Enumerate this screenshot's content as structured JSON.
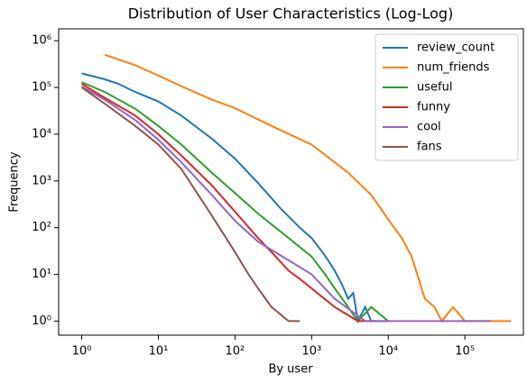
{
  "chart_data": {
    "type": "line",
    "title": "Distribution of User Characteristics (Log-Log)",
    "x_label": "By user",
    "y_label": "Frequency",
    "xscale": "log",
    "yscale": "log",
    "xlim": [
      0.5,
      580000
    ],
    "ylim": [
      0.5,
      1800000
    ],
    "xticks": [
      {
        "value": 1,
        "label": "10⁰"
      },
      {
        "value": 10,
        "label": "10¹"
      },
      {
        "value": 100,
        "label": "10²"
      },
      {
        "value": 1000,
        "label": "10³"
      },
      {
        "value": 10000,
        "label": "10⁴"
      },
      {
        "value": 100000,
        "label": "10⁵"
      }
    ],
    "yticks": [
      {
        "value": 1,
        "label": "10⁰"
      },
      {
        "value": 10,
        "label": "10¹"
      },
      {
        "value": 100,
        "label": "10²"
      },
      {
        "value": 1000,
        "label": "10³"
      },
      {
        "value": 10000,
        "label": "10⁴"
      },
      {
        "value": 100000,
        "label": "10⁵"
      },
      {
        "value": 1000000,
        "label": "10⁶"
      }
    ],
    "legend": "upper right",
    "series": [
      {
        "name": "review_count",
        "color": "#1f77b4",
        "x": [
          1,
          2,
          3,
          5,
          10,
          20,
          50,
          100,
          200,
          400,
          700,
          1000,
          1500,
          2000,
          2500,
          3000,
          3500,
          4000,
          5000,
          6000,
          8000,
          10000
        ],
        "values": [
          200000,
          150000,
          120000,
          80000,
          50000,
          25000,
          8000,
          3000,
          900,
          250,
          100,
          60,
          25,
          12,
          6,
          3,
          4,
          1,
          2,
          1,
          1,
          1
        ]
      },
      {
        "name": "num_friends",
        "color": "#ff7f0e",
        "x": [
          2,
          5,
          10,
          25,
          50,
          100,
          300,
          1000,
          3000,
          6000,
          10000,
          15000,
          20000,
          25000,
          30000,
          40000,
          50000,
          70000,
          100000,
          200000,
          400000
        ],
        "values": [
          500000,
          300000,
          180000,
          90000,
          55000,
          36000,
          15000,
          6000,
          1500,
          500,
          150,
          60,
          25,
          8,
          3,
          2,
          1,
          2,
          1,
          1,
          1
        ]
      },
      {
        "name": "useful",
        "color": "#2ca02c",
        "x": [
          1,
          2,
          5,
          10,
          20,
          50,
          100,
          200,
          500,
          1000,
          1500,
          2000,
          3000,
          4000,
          6000,
          10000
        ],
        "values": [
          130000,
          80000,
          35000,
          15000,
          6000,
          1500,
          550,
          200,
          60,
          24,
          10,
          5,
          2,
          1,
          2,
          1
        ]
      },
      {
        "name": "funny",
        "color": "#d62728",
        "x": [
          1,
          2,
          5,
          10,
          20,
          50,
          100,
          200,
          300,
          500,
          700,
          1000,
          2000,
          4000,
          7000
        ],
        "values": [
          120000,
          60000,
          25000,
          10000,
          3500,
          800,
          220,
          60,
          30,
          12,
          8,
          5,
          2,
          1,
          1
        ]
      },
      {
        "name": "cool",
        "color": "#9467bd",
        "x": [
          1,
          2,
          5,
          10,
          20,
          50,
          100,
          200,
          500,
          1000,
          2000,
          5000,
          10000,
          50000,
          220000
        ],
        "values": [
          105000,
          55000,
          20000,
          7600,
          2500,
          500,
          140,
          50,
          20,
          10,
          3,
          1,
          1,
          1,
          1
        ]
      },
      {
        "name": "fans",
        "color": "#8c564b",
        "x": [
          1,
          2,
          5,
          10,
          20,
          50,
          100,
          150,
          200,
          300,
          500,
          700
        ],
        "values": [
          100000,
          45000,
          15000,
          6000,
          1800,
          180,
          30,
          10,
          5,
          2,
          1,
          1
        ]
      }
    ]
  }
}
